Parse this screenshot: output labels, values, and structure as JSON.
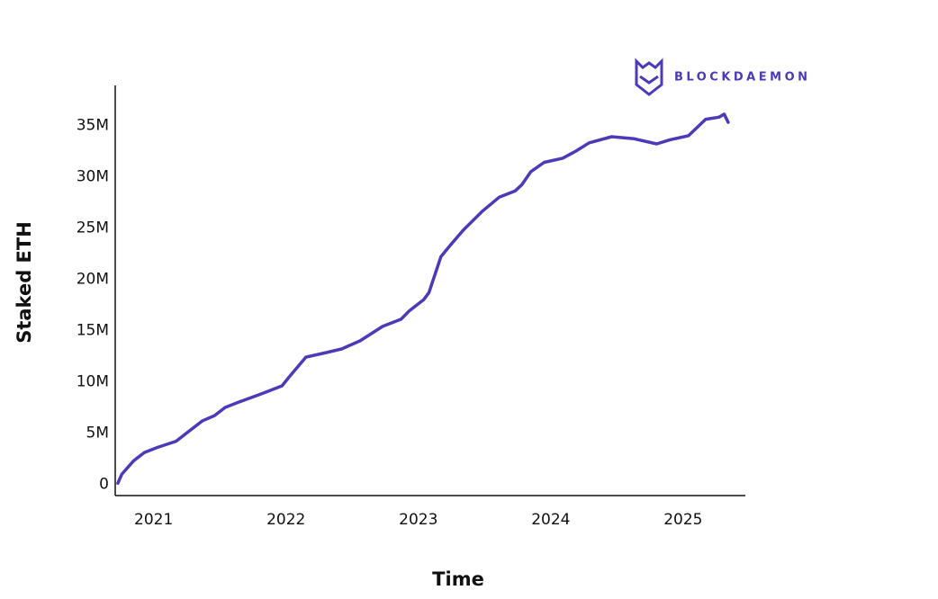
{
  "chart_data": {
    "type": "line",
    "brand": "BLOCKDAEMON",
    "y_label": "Staked ETH",
    "x_label": "Time",
    "xlim": [
      2020.71,
      2025.47
    ],
    "xticks": [
      2021,
      2022,
      2023,
      2024,
      2025
    ],
    "ylim": [
      -1.1,
      38.9
    ],
    "yticks": [
      0,
      {
        "value": 5,
        "label": "5M"
      },
      {
        "value": 10,
        "label": "10M"
      },
      {
        "value": 15,
        "label": "15M"
      },
      {
        "value": 20,
        "label": "20M"
      },
      {
        "value": 25,
        "label": "25M"
      },
      {
        "value": 30,
        "label": "30M"
      },
      {
        "value": 35,
        "label": "35M"
      }
    ],
    "series": [
      {
        "name": "Staked ETH",
        "color": "#4b3bb8",
        "x": [
          2020.73,
          2020.76,
          2020.85,
          2020.93,
          2021.03,
          2021.17,
          2021.26,
          2021.37,
          2021.46,
          2021.54,
          2021.64,
          2021.81,
          2021.97,
          2022.02,
          2022.15,
          2022.29,
          2022.42,
          2022.56,
          2022.73,
          2022.87,
          2022.93,
          2023.04,
          2023.08,
          2023.17,
          2023.24,
          2023.34,
          2023.48,
          2023.61,
          2023.73,
          2023.78,
          2023.85,
          2023.95,
          2024.09,
          2024.19,
          2024.29,
          2024.46,
          2024.63,
          2024.8,
          2024.9,
          2025.04,
          2025.17,
          2025.27,
          2025.31,
          2025.34
        ],
        "values": [
          0.1,
          1.0,
          2.3,
          3.1,
          3.6,
          4.2,
          5.1,
          6.2,
          6.7,
          7.5,
          8.0,
          8.8,
          9.6,
          10.4,
          12.4,
          12.8,
          13.2,
          14.0,
          15.4,
          16.1,
          16.9,
          18.0,
          18.7,
          22.2,
          23.3,
          24.8,
          26.6,
          28.0,
          28.6,
          29.2,
          30.5,
          31.4,
          31.8,
          32.5,
          33.3,
          33.9,
          33.7,
          33.2,
          33.6,
          34.0,
          35.6,
          35.8,
          36.1,
          35.3
        ]
      }
    ]
  }
}
